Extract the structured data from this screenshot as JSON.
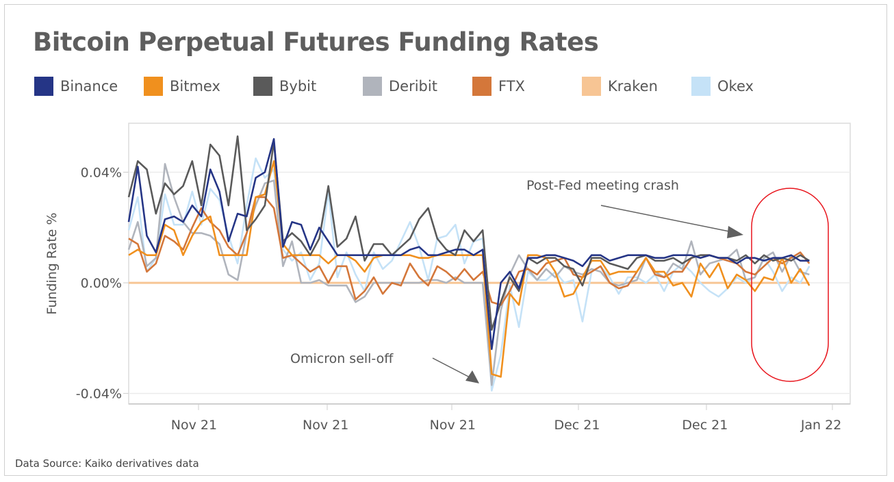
{
  "chart_data": {
    "type": "line",
    "title": "Bitcoin Perpetual Futures Funding Rates",
    "ylabel": "Funding Rate %",
    "xlabel": "",
    "y_unit": "%",
    "ylim": [
      -0.0438,
      0.0577
    ],
    "xlim": [
      0,
      79.5
    ],
    "y_ticks": [
      {
        "value": 0.04,
        "label": "0.04%"
      },
      {
        "value": 0.0,
        "label": "0.00%"
      },
      {
        "value": -0.04,
        "label": "-0.04%"
      }
    ],
    "x_ticks": [
      {
        "value": 7.2,
        "label": "Nov  21"
      },
      {
        "value": 21.7,
        "label": "Nov  21"
      },
      {
        "value": 35.7,
        "label": "Nov  21"
      },
      {
        "value": 49.4,
        "label": "Dec  21"
      },
      {
        "value": 63.5,
        "label": "Dec  21"
      },
      {
        "value": 76.3,
        "label": "Jan  22"
      }
    ],
    "grid": "horizontal",
    "legend_placement": "top",
    "series": [
      {
        "name": "Kraken",
        "color": "#f7c594",
        "values": [
          0,
          0,
          0,
          0,
          0,
          0,
          0,
          0,
          0,
          0,
          0,
          0,
          0,
          0,
          0,
          0,
          0,
          0,
          0,
          0,
          0,
          0,
          0,
          0,
          0,
          0,
          0,
          0,
          0,
          0,
          0,
          0,
          0,
          0,
          0,
          0,
          0,
          0,
          0,
          0,
          0,
          0,
          0,
          0,
          0,
          0,
          0,
          0,
          0,
          0,
          0,
          0,
          0,
          0,
          0,
          0,
          0,
          0,
          0,
          0,
          0,
          0,
          0,
          0,
          0,
          0,
          0,
          0,
          0,
          0,
          0,
          0,
          0,
          0,
          0,
          0
        ]
      },
      {
        "name": "Okex",
        "color": "#c5e2f7",
        "values": [
          0.019,
          0.031,
          0.004,
          0.009,
          0.032,
          0.021,
          0.021,
          0.033,
          0.021,
          0.034,
          0.03,
          0.017,
          0.007,
          0.028,
          0.045,
          0.038,
          0.041,
          0.012,
          0.008,
          0.011,
          0.001,
          0.007,
          0.033,
          0.002,
          0.011,
          0.003,
          -0.003,
          0.011,
          0.005,
          0.008,
          0.015,
          0.022,
          0.013,
          0.001,
          0.016,
          0.017,
          0.021,
          0.007,
          0.015,
          0.016,
          -0.039,
          -0.026,
          -0.001,
          -0.016,
          0.004,
          0.001,
          0.001,
          0.004,
          0.0,
          0.001,
          -0.014,
          0.004,
          0.006,
          0.002,
          -0.004,
          0.002,
          0.002,
          0.0,
          0.003,
          -0.003,
          0.004,
          0.007,
          0.004,
          0.0,
          -0.003,
          -0.005,
          -0.002,
          0.002,
          0.0,
          0.002,
          0.009,
          0.004,
          -0.003,
          0.002,
          0.0,
          0.006
        ]
      },
      {
        "name": "Deribit",
        "color": "#b0b4bc",
        "values": [
          0.012,
          0.022,
          0.006,
          0.009,
          0.043,
          0.031,
          0.022,
          0.018,
          0.018,
          0.017,
          0.014,
          0.003,
          0.001,
          0.018,
          0.028,
          0.036,
          0.037,
          0.006,
          0.015,
          0.0,
          0.0,
          0.001,
          -0.001,
          -0.001,
          -0.001,
          -0.007,
          -0.005,
          0.0,
          0.0,
          0.0,
          0.0,
          0.0,
          0.0,
          0.001,
          0.001,
          0.0,
          0.002,
          0.0,
          0.0,
          0.0,
          -0.037,
          -0.01,
          0.003,
          0.01,
          0.005,
          0.001,
          0.005,
          0.002,
          0.006,
          0.004,
          0.003,
          0.005,
          0.004,
          0.0,
          -0.001,
          0.0,
          0.001,
          0.009,
          0.004,
          0.002,
          0.007,
          0.005,
          0.015,
          0.003,
          0.007,
          0.008,
          0.009,
          0.012,
          0.001,
          0.002,
          0.009,
          0.011,
          0.004,
          0.01,
          0.004,
          0.003
        ]
      },
      {
        "name": "FTX",
        "color": "#d4773a",
        "values": [
          0.016,
          0.014,
          0.004,
          0.007,
          0.017,
          0.015,
          0.012,
          0.02,
          0.027,
          0.022,
          0.019,
          0.013,
          0.01,
          0.018,
          0.031,
          0.031,
          0.027,
          0.009,
          0.01,
          0.007,
          0.004,
          0.006,
          0.0,
          0.006,
          0.006,
          -0.006,
          -0.003,
          0.002,
          -0.004,
          0.0,
          -0.001,
          0.007,
          0.002,
          -0.001,
          0.006,
          0.004,
          0.001,
          0.005,
          0.001,
          0.004,
          -0.007,
          -0.008,
          -0.003,
          0.004,
          0.005,
          0.003,
          0.007,
          0.008,
          0.009,
          0.003,
          0.002,
          0.004,
          0.006,
          0.0,
          -0.002,
          -0.001,
          0.004,
          0.009,
          0.003,
          0.002,
          0.004,
          0.004,
          0.009,
          0.01,
          0.01,
          0.009,
          0.008,
          0.007,
          0.004,
          0.003,
          0.006,
          0.009,
          0.007,
          0.009,
          0.011,
          0.007
        ]
      },
      {
        "name": "Bitmex",
        "color": "#f0901e",
        "values": [
          0.01,
          0.012,
          0.01,
          0.01,
          0.021,
          0.019,
          0.01,
          0.017,
          0.022,
          0.024,
          0.01,
          0.01,
          0.01,
          0.01,
          0.031,
          0.032,
          0.044,
          0.014,
          0.01,
          0.01,
          0.01,
          0.01,
          0.007,
          0.01,
          0.01,
          0.008,
          0.004,
          0.009,
          0.01,
          0.01,
          0.01,
          0.01,
          0.009,
          0.009,
          0.01,
          0.01,
          0.01,
          0.01,
          0.01,
          0.01,
          -0.033,
          -0.034,
          -0.004,
          -0.008,
          0.01,
          0.01,
          0.009,
          0.004,
          -0.005,
          -0.004,
          0.002,
          0.008,
          0.008,
          0.003,
          0.004,
          0.004,
          0.004,
          0.009,
          0.004,
          0.004,
          -0.001,
          0.0,
          -0.005,
          0.007,
          0.002,
          0.007,
          -0.002,
          0.003,
          0.001,
          -0.003,
          0.002,
          0.001,
          0.009,
          0.0,
          0.005,
          -0.001
        ]
      },
      {
        "name": "Bybit",
        "color": "#5a5a5a",
        "values": [
          0.031,
          0.044,
          0.041,
          0.025,
          0.036,
          0.032,
          0.035,
          0.044,
          0.028,
          0.05,
          0.046,
          0.028,
          0.053,
          0.019,
          0.023,
          0.028,
          0.051,
          0.015,
          0.018,
          0.015,
          0.01,
          0.016,
          0.035,
          0.013,
          0.016,
          0.024,
          0.008,
          0.014,
          0.014,
          0.01,
          0.013,
          0.016,
          0.023,
          0.027,
          0.016,
          0.012,
          0.01,
          0.019,
          0.015,
          0.019,
          -0.017,
          -0.007,
          0.002,
          -0.003,
          0.009,
          0.007,
          0.009,
          0.009,
          0.006,
          0.005,
          -0.001,
          0.009,
          0.009,
          0.007,
          0.006,
          0.005,
          0.009,
          0.01,
          0.008,
          0.008,
          0.009,
          0.007,
          0.009,
          0.01,
          0.01,
          0.009,
          0.009,
          0.008,
          0.01,
          0.007,
          0.01,
          0.008,
          0.009,
          0.008,
          0.01,
          0.008
        ]
      },
      {
        "name": "Binance",
        "color": "#253586",
        "values": [
          0.022,
          0.042,
          0.017,
          0.011,
          0.023,
          0.024,
          0.022,
          0.028,
          0.024,
          0.041,
          0.033,
          0.015,
          0.025,
          0.024,
          0.038,
          0.04,
          0.052,
          0.013,
          0.022,
          0.021,
          0.012,
          0.02,
          0.015,
          0.01,
          0.01,
          0.01,
          0.01,
          0.01,
          0.01,
          0.01,
          0.01,
          0.012,
          0.013,
          0.01,
          0.01,
          0.011,
          0.012,
          0.012,
          0.01,
          0.012,
          -0.024,
          0.0,
          0.004,
          -0.002,
          0.009,
          0.009,
          0.01,
          0.01,
          0.009,
          0.008,
          0.006,
          0.01,
          0.01,
          0.008,
          0.009,
          0.01,
          0.01,
          0.01,
          0.009,
          0.009,
          0.01,
          0.01,
          0.01,
          0.009,
          0.01,
          0.009,
          0.009,
          0.007,
          0.009,
          0.009,
          0.008,
          0.009,
          0.009,
          0.01,
          0.008,
          0.008
        ]
      }
    ],
    "annotations": [
      {
        "text": "Post-Fed meeting crash",
        "arrow": true,
        "color": "#555555"
      },
      {
        "text": "Omicron sell-off",
        "arrow": true,
        "color": "#555555"
      }
    ],
    "highlight": {
      "shape": "rounded-rectangle",
      "color": "#e8141c"
    }
  },
  "legend": [
    {
      "label": "Binance",
      "color": "#253586"
    },
    {
      "label": "Bitmex",
      "color": "#f0901e"
    },
    {
      "label": "Bybit",
      "color": "#5a5a5a"
    },
    {
      "label": "Deribit",
      "color": "#b0b4bc"
    },
    {
      "label": "FTX",
      "color": "#d4773a"
    },
    {
      "label": "Kraken",
      "color": "#f7c594"
    },
    {
      "label": "Okex",
      "color": "#c5e2f7"
    }
  ],
  "source": "Data Source: Kaiko derivatives data"
}
